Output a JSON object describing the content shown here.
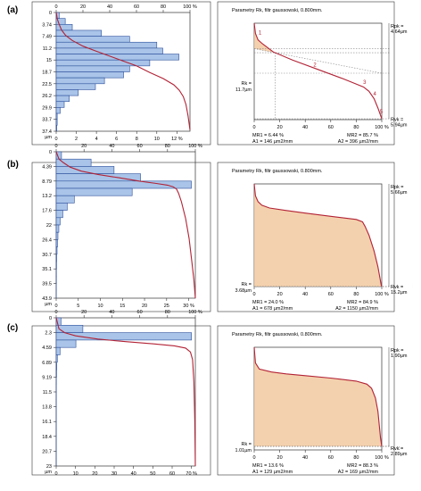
{
  "colors": {
    "bar_fill": "#a9c4e8",
    "bar_stroke": "#2d4f9c",
    "curve": "#b22235",
    "shade": "#f2c9a0",
    "grid": "#888888",
    "frame": "#333333"
  },
  "chart_data": [
    {
      "panel": "(a)",
      "type": "bar",
      "orientation": "horizontal",
      "y_unit": "µm",
      "y_ticks": [
        "0",
        "3.74",
        "7.49",
        "11.2",
        "15",
        "18.7",
        "22.5",
        "26.2",
        "29.9",
        "33.7",
        "37.4"
      ],
      "ylim": [
        0,
        37.4
      ],
      "top_ticks": [
        "0",
        "20",
        "40",
        "60",
        "80",
        "100 %"
      ],
      "top_range": [
        0,
        100
      ],
      "bottom_ticks": [
        "0",
        "2",
        "4",
        "6",
        "8",
        "10",
        "12 %"
      ],
      "bottom_range": [
        0,
        13.3
      ],
      "bins": 20,
      "values": [
        0.3,
        0.9,
        1.6,
        4.5,
        7.3,
        10.0,
        10.6,
        12.2,
        9.3,
        7.3,
        6.7,
        4.8,
        3.9,
        2.2,
        1.3,
        0.8,
        0.4,
        0.1,
        0.1,
        0.05
      ],
      "series": [
        {
          "name": "",
          "type": "line",
          "x": [
            0,
            0.8,
            2,
            4,
            7,
            12,
            20,
            30,
            45,
            60,
            70,
            80,
            88,
            92,
            95,
            97,
            98.5,
            100
          ],
          "y": [
            0,
            2,
            3.5,
            5.5,
            7.2,
            8.8,
            10.6,
            12.2,
            14.5,
            16.8,
            18.9,
            20.8,
            22.8,
            24.5,
            26.5,
            29,
            32.5,
            37
          ]
        }
      ]
    },
    {
      "panel": "(a)",
      "type": "line",
      "subtitle": "Parametry Rk, filtr gaussowski, 0.800mm.",
      "xlim": [
        0,
        100
      ],
      "x_ticks": [
        "0",
        "20",
        "40",
        "60",
        "80",
        "100 %"
      ],
      "x": [
        0,
        1,
        3,
        6.44,
        15,
        30,
        50,
        70,
        85.7,
        90,
        94,
        97,
        100
      ],
      "y": [
        0,
        2.4,
        3.9,
        4.8,
        6.7,
        8.6,
        10.8,
        13,
        14.9,
        15.9,
        17.6,
        19.8,
        22.3
      ],
      "ylim": [
        0,
        22.5
      ],
      "points": [
        "1",
        "2",
        "3",
        "4",
        "5"
      ],
      "Rpk": "Rpk = 4.64µm",
      "Rk": "Rk = 11.7µm",
      "Rvk": "Rvk = 5.94µm",
      "MR1": "MR1 = 6.44 %",
      "MR2": "MR2 = 85.7 %",
      "A1": "A1 = 146 µm2/mm",
      "A2": "A2 = 396 µm2/mm"
    },
    {
      "panel": "(b)",
      "type": "bar",
      "orientation": "horizontal",
      "y_unit": "µm",
      "y_ticks": [
        "0",
        "4.39",
        "8.79",
        "13.2",
        "17.6",
        "22",
        "26.4",
        "30.7",
        "35.1",
        "39.5",
        "43.9"
      ],
      "ylim": [
        0,
        43.9
      ],
      "top_ticks": [
        "0",
        "20",
        "40",
        "60",
        "80",
        "100 %"
      ],
      "top_range": [
        0,
        100
      ],
      "bottom_ticks": [
        "0",
        "5",
        "10",
        "15",
        "20",
        "25",
        "30 %"
      ],
      "bottom_range": [
        0,
        31.5
      ],
      "bins": 20,
      "values": [
        1.2,
        7.9,
        13.1,
        19.1,
        30.6,
        17.2,
        4.1,
        2.5,
        1.5,
        0.9,
        0.6,
        0.4,
        0.3,
        0.2,
        0.1,
        0.08,
        0.05,
        0.05,
        0.03,
        0.02
      ],
      "series": [
        {
          "name": "",
          "type": "line",
          "x": [
            0,
            2,
            5,
            10,
            18,
            30,
            45,
            60,
            72,
            80,
            84,
            86.5,
            88,
            90,
            93,
            95.5,
            97.5,
            99,
            100
          ],
          "y": [
            0,
            2.2,
            3.2,
            4.6,
            5.8,
            6.8,
            7.8,
            8.8,
            9.5,
            10,
            10.5,
            11.2,
            12.5,
            15,
            20,
            26,
            33,
            38.5,
            43.9
          ]
        }
      ]
    },
    {
      "panel": "(b)",
      "type": "line",
      "subtitle": "Parametry Rk, filtr gaussowski, 0.800mm.",
      "xlim": [
        0,
        100
      ],
      "x_ticks": [
        "0",
        "20",
        "40",
        "60",
        "80",
        "100 %"
      ],
      "x": [
        0,
        1,
        3,
        6,
        12,
        24,
        40,
        60,
        80,
        84.9,
        87,
        90,
        94,
        97,
        99.5,
        100
      ],
      "y": [
        0,
        3,
        4.5,
        5.4,
        6.1,
        6.7,
        7.4,
        8.2,
        9,
        9.6,
        10.8,
        13,
        17,
        21,
        25.5,
        26
      ],
      "ylim": [
        0,
        26
      ],
      "Rpk": "Rpk = 5.66µm",
      "Rk": "Rk = 3.68µm",
      "Rvk": "Rvk = 15.2µm",
      "MR1": "MR1 = 24.0 %",
      "MR2": "MR2 = 84.9 %",
      "A1": "A1 = 678 µm2/mm",
      "A2": "A2 = 1150 µm2/mm"
    },
    {
      "panel": "(c)",
      "type": "bar",
      "orientation": "horizontal",
      "y_unit": "µm",
      "y_ticks": [
        "0",
        "2.3",
        "4.59",
        "6.89",
        "9.19",
        "11.5",
        "13.8",
        "16.1",
        "18.4",
        "20.7",
        "23"
      ],
      "ylim": [
        0,
        23
      ],
      "top_ticks": [
        "0",
        "20",
        "40",
        "60",
        "80",
        "100 %"
      ],
      "top_range": [
        0,
        100
      ],
      "bottom_ticks": [
        "0",
        "10",
        "20",
        "30",
        "40",
        "50",
        "60",
        "70 %"
      ],
      "bottom_range": [
        0,
        72
      ],
      "bins": 20,
      "values": [
        2.5,
        13.8,
        70,
        10.2,
        2.0,
        0.6,
        0.3,
        0.2,
        0.1,
        0.08,
        0.06,
        0.05,
        0.04,
        0.03,
        0.02,
        0.02,
        0.01,
        0.01,
        0.01,
        0.01
      ],
      "series": [
        {
          "name": "",
          "type": "line",
          "x": [
            0,
            2,
            6,
            14,
            30,
            50,
            70,
            85,
            93,
            96.5,
            98,
            99,
            99.6,
            100
          ],
          "y": [
            0,
            1.7,
            2.3,
            2.8,
            3.3,
            3.7,
            4.05,
            4.35,
            4.7,
            5.3,
            6.5,
            10,
            16,
            23
          ]
        }
      ]
    },
    {
      "panel": "(c)",
      "type": "line",
      "subtitle": "Parametry Rk, filtr gaussowski, 0.800mm.",
      "xlim": [
        0,
        100
      ],
      "x_ticks": [
        "0",
        "20",
        "40",
        "60",
        "80",
        "100 %"
      ],
      "x": [
        0,
        1,
        4,
        13.6,
        25,
        40,
        60,
        80,
        88.3,
        92,
        95,
        97,
        99,
        100
      ],
      "y": [
        0,
        1.3,
        1.8,
        2.05,
        2.2,
        2.35,
        2.55,
        2.8,
        3.05,
        3.4,
        4.2,
        5.3,
        7.5,
        8.2
      ],
      "ylim": [
        0,
        8.5
      ],
      "Rpk": "Rpk = 1.90µm",
      "Rk": "Rk = 1.01µm",
      "Rvk": "Rvk = 2.89µm",
      "MR1": "MR1 = 13.6 %",
      "MR2": "MR2 = 88.3 %",
      "A1": "A1 = 129 µm2/mm",
      "A2": "A2 = 169 µm2/mm"
    }
  ],
  "labels": [
    "(a)",
    "(b)",
    "(c)"
  ]
}
